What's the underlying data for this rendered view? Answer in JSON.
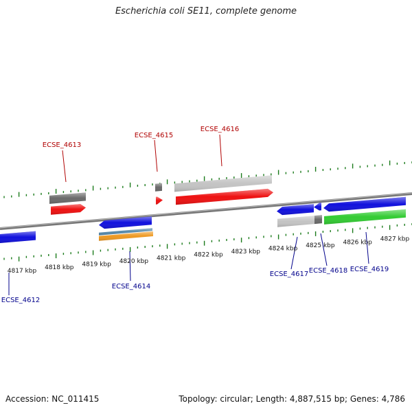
{
  "title": "Escherichia coli SE11, complete genome",
  "footer": {
    "accession": "Accession: NC_011415",
    "summary": "Topology: circular; Length: 4,887,515 bp; Genes: 4,786"
  },
  "colors": {
    "backbone": "#888888",
    "tick": "#1a7a1a",
    "forward_label": "#b00000",
    "reverse_label": "#00008b",
    "red": "#ee1111",
    "blue": "#1111dd",
    "green": "#33cc33",
    "dark_gray": "#6a6a6a",
    "light_gray": "#c4c4c4",
    "orange": "#ee9922",
    "steel": "#5588aa"
  },
  "ruler": {
    "labels": [
      "4817 kbp",
      "4818 kbp",
      "4819 kbp",
      "4820 kbp",
      "4821 kbp",
      "4822 kbp",
      "4823 kbp",
      "4824 kbp",
      "4825 kbp",
      "4826 kbp",
      "4827 kbp"
    ]
  },
  "genes": [
    {
      "name": "ECSE_4612",
      "strand": "reverse"
    },
    {
      "name": "ECSE_4613",
      "strand": "forward"
    },
    {
      "name": "ECSE_4614",
      "strand": "reverse"
    },
    {
      "name": "ECSE_4615",
      "strand": "forward"
    },
    {
      "name": "ECSE_4616",
      "strand": "forward"
    },
    {
      "name": "ECSE_4617",
      "strand": "reverse"
    },
    {
      "name": "ECSE_4618",
      "strand": "reverse"
    },
    {
      "name": "ECSE_4619",
      "strand": "reverse"
    }
  ]
}
